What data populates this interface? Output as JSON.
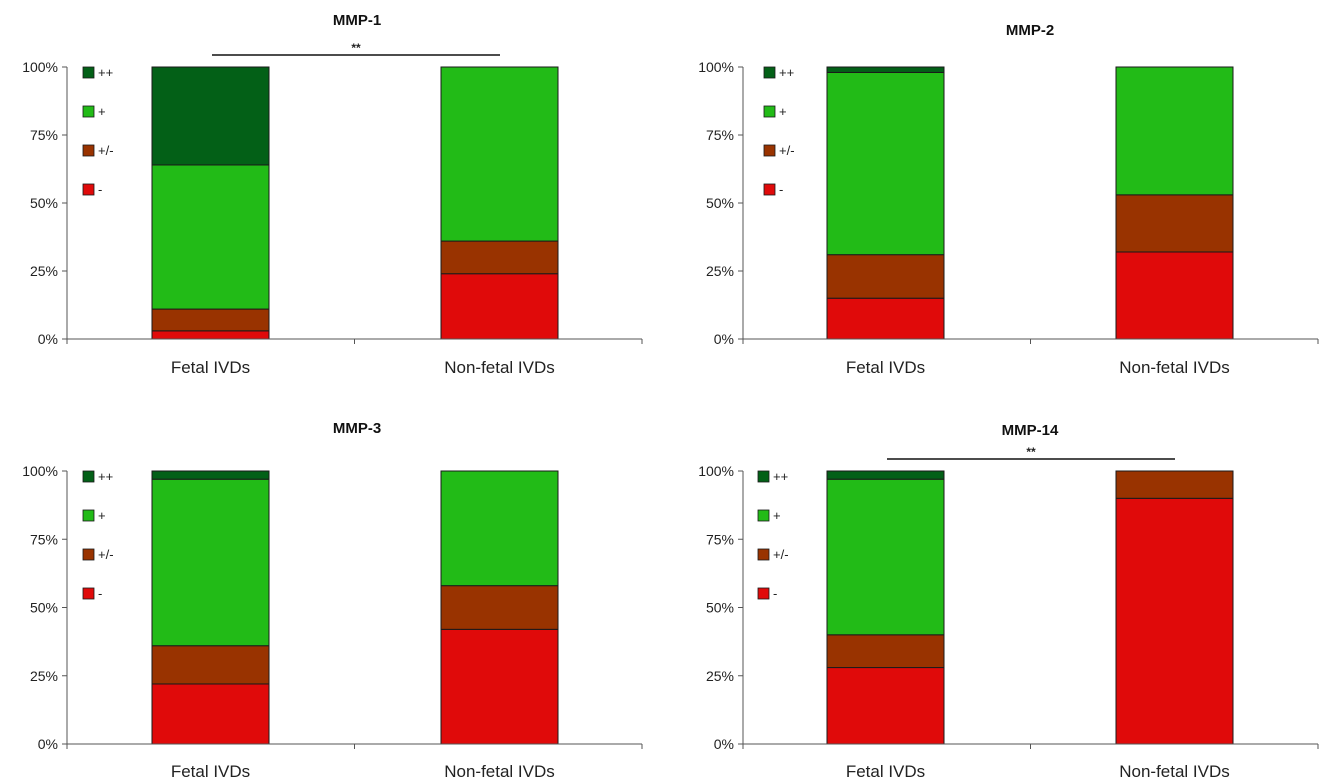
{
  "chart_data": [
    {
      "type": "bar",
      "stacked": true,
      "title": "MMP-1",
      "categories": [
        "Fetal IVDs",
        "Non-fetal IVDs"
      ],
      "ylim": [
        0,
        100
      ],
      "yticks": [
        "0%",
        "25%",
        "50%",
        "75%",
        "100%"
      ],
      "series": [
        {
          "name": "-",
          "color": "#e00a0a",
          "values": [
            3,
            24
          ]
        },
        {
          "name": "+/-",
          "color": "#993300",
          "values": [
            8,
            12
          ]
        },
        {
          "name": "+",
          "color": "#22bb17",
          "values": [
            53,
            64
          ]
        },
        {
          "name": "++",
          "color": "#036017",
          "values": [
            36,
            0
          ]
        }
      ],
      "significance": "**",
      "legend_position": "top-left",
      "grid": false
    },
    {
      "type": "bar",
      "stacked": true,
      "title": "MMP-2",
      "categories": [
        "Fetal IVDs",
        "Non-fetal IVDs"
      ],
      "ylim": [
        0,
        100
      ],
      "yticks": [
        "0%",
        "25%",
        "50%",
        "75%",
        "100%"
      ],
      "series": [
        {
          "name": "-",
          "color": "#e00a0a",
          "values": [
            15,
            32
          ]
        },
        {
          "name": "+/-",
          "color": "#993300",
          "values": [
            16,
            21
          ]
        },
        {
          "name": "+",
          "color": "#22bb17",
          "values": [
            67,
            47
          ]
        },
        {
          "name": "++",
          "color": "#036017",
          "values": [
            2,
            0
          ]
        }
      ],
      "significance": "",
      "legend_position": "top-left",
      "grid": false
    },
    {
      "type": "bar",
      "stacked": true,
      "title": "MMP-3",
      "categories": [
        "Fetal IVDs",
        "Non-fetal IVDs"
      ],
      "ylim": [
        0,
        100
      ],
      "yticks": [
        "0%",
        "25%",
        "50%",
        "75%",
        "100%"
      ],
      "series": [
        {
          "name": "-",
          "color": "#e00a0a",
          "values": [
            22,
            42
          ]
        },
        {
          "name": "+/-",
          "color": "#993300",
          "values": [
            14,
            16
          ]
        },
        {
          "name": "+",
          "color": "#22bb17",
          "values": [
            61,
            42
          ]
        },
        {
          "name": "++",
          "color": "#036017",
          "values": [
            3,
            0
          ]
        }
      ],
      "significance": "",
      "legend_position": "top-left",
      "grid": false
    },
    {
      "type": "bar",
      "stacked": true,
      "title": "MMP-14",
      "categories": [
        "Fetal IVDs",
        "Non-fetal IVDs"
      ],
      "ylim": [
        0,
        100
      ],
      "yticks": [
        "0%",
        "25%",
        "50%",
        "75%",
        "100%"
      ],
      "series": [
        {
          "name": "-",
          "color": "#e00a0a",
          "values": [
            28,
            90
          ]
        },
        {
          "name": "+/-",
          "color": "#993300",
          "values": [
            12,
            10
          ]
        },
        {
          "name": "+",
          "color": "#22bb17",
          "values": [
            57,
            0
          ]
        },
        {
          "name": "++",
          "color": "#036017",
          "values": [
            3,
            0
          ]
        }
      ],
      "significance": "**",
      "legend_position": "top-left",
      "grid": false
    }
  ]
}
